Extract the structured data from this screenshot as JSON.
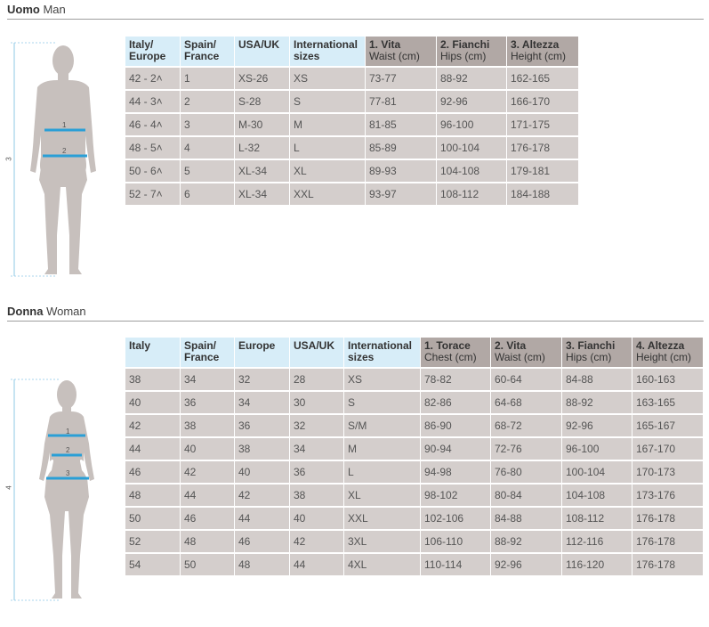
{
  "man": {
    "title_it": "Uomo",
    "title_en": "Man",
    "figure_labels": {
      "waist": "1",
      "hips": "2",
      "height": "3"
    },
    "headers": [
      {
        "it": "Italy/\nEurope",
        "en": ""
      },
      {
        "it": "Spain/\nFrance",
        "en": ""
      },
      {
        "it": "USA/UK",
        "en": ""
      },
      {
        "it": "International\nsizes",
        "en": ""
      },
      {
        "it": "1. Vita",
        "en": "Waist (cm)"
      },
      {
        "it": "2. Fianchi",
        "en": "Hips (cm)"
      },
      {
        "it": "3. Altezza",
        "en": "Height (cm)"
      }
    ],
    "rows": [
      [
        "42 - 2˄",
        "1",
        "XS-26",
        "XS",
        "73-77",
        "88-92",
        "162-165"
      ],
      [
        "44 - 3˄",
        "2",
        "S-28",
        "S",
        "77-81",
        "92-96",
        "166-170"
      ],
      [
        "46 - 4˄",
        "3",
        "M-30",
        "M",
        "81-85",
        "96-100",
        "171-175"
      ],
      [
        "48 - 5˄",
        "4",
        "L-32",
        "L",
        "85-89",
        "100-104",
        "176-178"
      ],
      [
        "50 - 6˄",
        "5",
        "XL-34",
        "XL",
        "89-93",
        "104-108",
        "179-181"
      ],
      [
        "52 - 7˄",
        "6",
        "XL-34",
        "XXL",
        "93-97",
        "108-112",
        "184-188"
      ]
    ]
  },
  "woman": {
    "title_it": "Donna",
    "title_en": "Woman",
    "figure_labels": {
      "chest": "1",
      "waist": "2",
      "hips": "3",
      "height": "4"
    },
    "headers": [
      {
        "it": "Italy",
        "en": ""
      },
      {
        "it": "Spain/\nFrance",
        "en": ""
      },
      {
        "it": "Europe",
        "en": ""
      },
      {
        "it": "USA/UK",
        "en": ""
      },
      {
        "it": "International\nsizes",
        "en": ""
      },
      {
        "it": "1. Torace",
        "en": "Chest (cm)"
      },
      {
        "it": "2. Vita",
        "en": "Waist (cm)"
      },
      {
        "it": "3. Fianchi",
        "en": "Hips (cm)"
      },
      {
        "it": "4. Altezza",
        "en": "Height (cm)"
      }
    ],
    "rows": [
      [
        "38",
        "34",
        "32",
        "28",
        "XS",
        "78-82",
        "60-64",
        "84-88",
        "160-163"
      ],
      [
        "40",
        "36",
        "34",
        "30",
        "S",
        "82-86",
        "64-68",
        "88-92",
        "163-165"
      ],
      [
        "42",
        "38",
        "36",
        "32",
        "S/M",
        "86-90",
        "68-72",
        "92-96",
        "165-167"
      ],
      [
        "44",
        "40",
        "38",
        "34",
        "M",
        "90-94",
        "72-76",
        "96-100",
        "167-170"
      ],
      [
        "46",
        "42",
        "40",
        "36",
        "L",
        "94-98",
        "76-80",
        "100-104",
        "170-173"
      ],
      [
        "48",
        "44",
        "42",
        "38",
        "XL",
        "98-102",
        "80-84",
        "104-108",
        "173-176"
      ],
      [
        "50",
        "46",
        "44",
        "40",
        "XXL",
        "102-106",
        "84-88",
        "108-112",
        "176-178"
      ],
      [
        "52",
        "48",
        "46",
        "42",
        "3XL",
        "106-110",
        "88-92",
        "112-116",
        "176-178"
      ],
      [
        "54",
        "50",
        "48",
        "44",
        "4XL",
        "110-114",
        "92-96",
        "116-120",
        "176-178"
      ]
    ]
  },
  "colors": {
    "row_bg": "#d4cecc",
    "header_cold": "#d7edf8",
    "header_warm": "#b1a8a5",
    "figure": "#c7c0bd",
    "measure_line": "#2a9fd6"
  }
}
